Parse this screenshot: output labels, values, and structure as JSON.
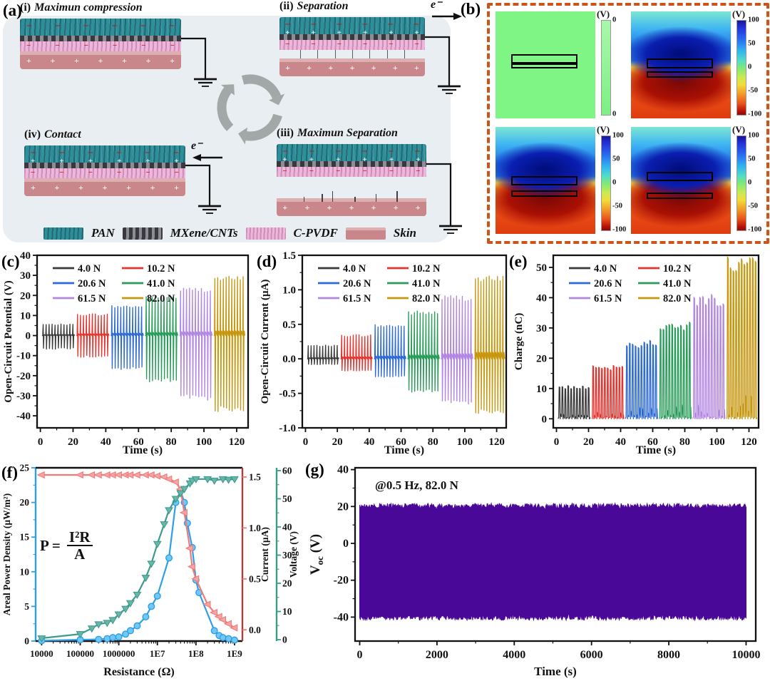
{
  "panel_a": {
    "label": "(a)",
    "plus": "+",
    "minus": "−",
    "electron": "e⁻",
    "states": [
      {
        "num": "(i)",
        "title": "Maximun compression"
      },
      {
        "num": "(ii)",
        "title": "Separation"
      },
      {
        "num": "(iii)",
        "title": "Maximun Separation"
      },
      {
        "num": "(iv)",
        "title": "Contact"
      }
    ],
    "legend": [
      {
        "name": "PAN",
        "color": "#2e8f9b"
      },
      {
        "name": "MXene/CNTs",
        "color": "#6d6d74"
      },
      {
        "name": "C-PVDF",
        "color": "#edb6da"
      },
      {
        "name": "Skin",
        "color": "#c9868b"
      }
    ]
  },
  "panel_b": {
    "label": "(b)",
    "unit": "(V)",
    "border_color": "#cd5318",
    "maps": [
      {
        "name": "contact-zero-potential",
        "ticks": [
          "0",
          "0"
        ]
      },
      {
        "name": "small-separation",
        "ticks": [
          "100",
          "50",
          "0",
          "-50",
          "-100"
        ]
      },
      {
        "name": "medium-separation",
        "ticks": [
          "100",
          "50",
          "0",
          "-50",
          "-100"
        ]
      },
      {
        "name": "maximum-separation",
        "ticks": [
          "100",
          "50",
          "0",
          "-50",
          "-100"
        ]
      }
    ]
  },
  "chart_data": [
    {
      "id": "c",
      "panel_label": "(c)",
      "type": "pulse-bipolar",
      "xlabel": "Time (s)",
      "ylabel": "Open-Circuit Potential (V)",
      "xlim": [
        -2,
        127
      ],
      "xticks": [
        0,
        20,
        40,
        60,
        80,
        100,
        120
      ],
      "ylim": [
        -46,
        40
      ],
      "yticks": [
        -40,
        -30,
        -20,
        -10,
        0,
        10,
        20,
        30,
        40
      ],
      "legend_position": "top-left",
      "grid": false,
      "series": [
        {
          "name": "4.0 N",
          "color": "#3a3a3a",
          "t": [
            1,
            21
          ],
          "peak_pos": 5.5,
          "peak_neg": -6.5,
          "pulses": 11
        },
        {
          "name": "10.2 N",
          "color": "#e5332e",
          "t": [
            22,
            42
          ],
          "peak_pos": 10.5,
          "peak_neg": -10.5,
          "pulses": 11
        },
        {
          "name": "20.6 N",
          "color": "#2e6ad4",
          "t": [
            43,
            63
          ],
          "peak_pos": 14.5,
          "peak_neg": -16.5,
          "pulses": 11
        },
        {
          "name": "41.0 N",
          "color": "#2a9c59",
          "t": [
            64,
            84
          ],
          "peak_pos": 19.0,
          "peak_neg": -22.5,
          "pulses": 11
        },
        {
          "name": "61.5 N",
          "color": "#b286e3",
          "t": [
            85,
            105
          ],
          "peak_pos": 23.0,
          "peak_neg": -31.0,
          "pulses": 11
        },
        {
          "name": "82.0 N",
          "color": "#c6970f",
          "t": [
            106,
            125
          ],
          "peak_pos": 28.5,
          "peak_neg": -36.5,
          "pulses": 11
        }
      ]
    },
    {
      "id": "d",
      "panel_label": "(d)",
      "type": "pulse-bipolar",
      "xlabel": "Time (s)",
      "ylabel": "Open-Circuit Current (µA)",
      "xlim": [
        -2,
        126
      ],
      "xticks": [
        0,
        20,
        40,
        60,
        80,
        100,
        120
      ],
      "ylim": [
        -1.0,
        1.5
      ],
      "yticks": [
        -1.0,
        -0.5,
        0.0,
        0.5,
        1.0,
        1.5
      ],
      "ytick_labels": [
        "-1.0",
        "-0.5",
        "0.0",
        "0.5",
        "1.0",
        "1.5"
      ],
      "legend_position": "top-left",
      "grid": false,
      "series": [
        {
          "name": "4.0 N",
          "color": "#3a3a3a",
          "t": [
            1,
            21
          ],
          "peak_pos": 0.19,
          "peak_neg": -0.08,
          "pulses": 11
        },
        {
          "name": "10.2 N",
          "color": "#e5332e",
          "t": [
            22,
            42
          ],
          "peak_pos": 0.34,
          "peak_neg": -0.17,
          "pulses": 11
        },
        {
          "name": "20.6 N",
          "color": "#2e6ad4",
          "t": [
            43,
            63
          ],
          "peak_pos": 0.48,
          "peak_neg": -0.26,
          "pulses": 11
        },
        {
          "name": "41.0 N",
          "color": "#2a9c59",
          "t": [
            64,
            84
          ],
          "peak_pos": 0.67,
          "peak_neg": -0.47,
          "pulses": 11
        },
        {
          "name": "61.5 N",
          "color": "#b286e3",
          "t": [
            85,
            105
          ],
          "peak_pos": 0.89,
          "peak_neg": -0.63,
          "pulses": 11
        },
        {
          "name": "82.0 N",
          "color": "#c6970f",
          "t": [
            106,
            125
          ],
          "peak_pos": 1.16,
          "peak_neg": -0.76,
          "pulses": 11
        }
      ]
    },
    {
      "id": "e",
      "panel_label": "(e)",
      "type": "pulse-positive",
      "xlabel": "Time (s)",
      "ylabel": "Charge (nC)",
      "xlim": [
        -2,
        126
      ],
      "xticks": [
        0,
        20,
        40,
        60,
        80,
        100,
        120
      ],
      "ylim": [
        -3,
        54
      ],
      "yticks": [
        0,
        10,
        20,
        30,
        40,
        50
      ],
      "legend_position": "top-left",
      "grid": false,
      "series": [
        {
          "name": "4.0 N",
          "color": "#3a3a3a",
          "t": [
            1,
            21
          ],
          "peak": 10.5,
          "pulses": 11
        },
        {
          "name": "10.2 N",
          "color": "#e5332e",
          "t": [
            22,
            42
          ],
          "peak": 17.0,
          "pulses": 11
        },
        {
          "name": "20.6 N",
          "color": "#2e6ad4",
          "t": [
            43,
            63
          ],
          "peak": 25.0,
          "pulses": 11
        },
        {
          "name": "41.0 N",
          "color": "#2a9c59",
          "t": [
            64,
            84
          ],
          "peak": 31.0,
          "pulses": 11
        },
        {
          "name": "61.5 N",
          "color": "#b286e3",
          "t": [
            85,
            105
          ],
          "peak": 39.5,
          "pulses": 11
        },
        {
          "name": "82.0 N",
          "color": "#c6970f",
          "t": [
            106,
            125
          ],
          "peak": 51.5,
          "pulses": 11
        }
      ]
    },
    {
      "id": "f",
      "panel_label": "(f)",
      "type": "multi-axis-line",
      "xlabel": "Resistance (Ω)",
      "xscale": "log",
      "xlim": [
        7000,
        1600000000.0
      ],
      "xticks": {
        "values": [
          10000.0,
          100000.0,
          1000000.0,
          10000000.0,
          100000000.0,
          1000000000.0
        ],
        "labels": [
          "10000",
          "100000",
          "1000000",
          "1E7",
          "1E8",
          "1E9"
        ]
      },
      "formula": {
        "lhs": "P",
        "eq": "=",
        "num": "I²R",
        "den": "A"
      },
      "grid": false,
      "axes": {
        "left": {
          "label": "Areal Power Density (µW/m²)",
          "color": "#2d9fe8",
          "lim": [
            0,
            25
          ],
          "ticks": [
            0,
            5,
            10,
            15,
            20,
            25
          ]
        },
        "right1": {
          "label": "Current (µA)",
          "color": "#f07a7a",
          "spine_color": "#a84038",
          "lim": [
            -0.11,
            1.59
          ],
          "ticks": [
            0.0,
            0.5,
            1.0,
            1.5
          ],
          "tick_labels": [
            "0.0",
            "0.5",
            "1.0",
            "1.5"
          ]
        },
        "right2": {
          "label": "Voltage (V)",
          "color": "#3b9c8d",
          "lim": [
            -0.5,
            61
          ],
          "ticks": [
            0,
            10,
            20,
            30,
            40,
            50,
            60
          ]
        }
      },
      "series": [
        {
          "name": "areal-power-density",
          "axis": "left",
          "marker": "circle",
          "color": "#2d9fe8",
          "fill": "#72c8f5",
          "x": [
            10000.0,
            100000.0,
            300000.0,
            500000.0,
            700000.0,
            1000000.0,
            1500000.0,
            2000000.0,
            3000000.0,
            5000000.0,
            7000000.0,
            10000000.0,
            20000000.0,
            30000000.0,
            40000000.0,
            50000000.0,
            60000000.0,
            80000000.0,
            100000000.0,
            120000000.0,
            300000000.0,
            400000000.0,
            500000000.0,
            700000000.0,
            1000000000.0
          ],
          "y": [
            0.05,
            0.2,
            0.25,
            0.35,
            0.5,
            0.6,
            1.0,
            1.5,
            2.2,
            3.5,
            5.0,
            6.5,
            12,
            20,
            21.7,
            20,
            17,
            13.5,
            8.8,
            7.0,
            1.5,
            0.8,
            0.5,
            0.35,
            0.15
          ]
        },
        {
          "name": "current",
          "axis": "right1",
          "marker": "tri-left",
          "color": "#f07a7a",
          "fill": "#f6a4a4",
          "x": [
            10000.0,
            100000.0,
            200000.0,
            300000.0,
            500000.0,
            700000.0,
            1000000.0,
            1500000.0,
            2000000.0,
            3000000.0,
            5000000.0,
            7000000.0,
            10000000.0,
            15000000.0,
            20000000.0,
            30000000.0,
            40000000.0,
            50000000.0,
            70000000.0,
            80000000.0,
            100000000.0,
            200000000.0,
            300000000.0,
            400000000.0,
            500000000.0,
            700000000.0,
            1000000000.0
          ],
          "y": [
            1.52,
            1.52,
            1.52,
            1.52,
            1.52,
            1.52,
            1.52,
            1.52,
            1.52,
            1.52,
            1.52,
            1.52,
            1.51,
            1.5,
            1.48,
            1.45,
            1.38,
            1.15,
            0.8,
            0.62,
            0.5,
            0.25,
            0.17,
            0.13,
            0.1,
            0.06,
            0.02
          ]
        },
        {
          "name": "voltage",
          "axis": "right2",
          "marker": "tri-down",
          "color": "#3b9c8d",
          "fill": "#6ab5a8",
          "x": [
            10000.0,
            100000.0,
            200000.0,
            300000.0,
            500000.0,
            700000.0,
            1000000.0,
            1500000.0,
            2000000.0,
            3000000.0,
            5000000.0,
            7000000.0,
            10000000.0,
            15000000.0,
            20000000.0,
            30000000.0,
            40000000.0,
            50000000.0,
            70000000.0,
            80000000.0,
            100000000.0,
            200000000.0,
            300000000.0,
            500000000.0,
            700000000.0,
            1000000000.0
          ],
          "y": [
            0.5,
            2,
            4,
            5.5,
            6,
            7,
            9,
            11,
            13,
            16,
            22,
            27,
            34,
            41,
            46,
            50,
            52,
            53.5,
            55.5,
            56.5,
            57,
            57,
            56.5,
            57,
            56.8,
            57
          ]
        }
      ]
    },
    {
      "id": "g",
      "panel_label": "(g)",
      "type": "noise-band",
      "xlabel": "Time (s)",
      "ylabel": {
        "main": "V",
        "sub": "oc",
        "unit": " (V)"
      },
      "annotation": "@0.5 Hz, 82.0 N",
      "xlim": [
        -120,
        10250
      ],
      "xticks": [
        0,
        2000,
        4000,
        6000,
        8000,
        10000
      ],
      "ylim": [
        -53,
        41
      ],
      "yticks": [
        -40,
        -20,
        0,
        20,
        40
      ],
      "grid": false,
      "band": {
        "top": 20.3,
        "bottom": -40.3,
        "jitter": 1.4,
        "color": "#4a0899",
        "points": 640
      }
    }
  ]
}
